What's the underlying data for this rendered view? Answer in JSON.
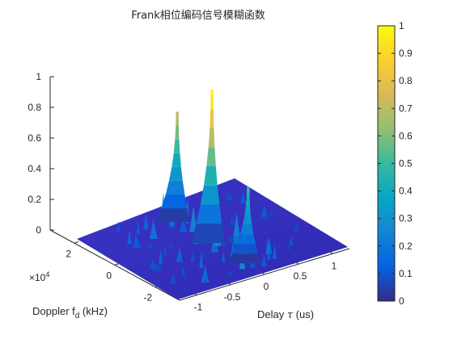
{
  "chart_data": {
    "type": "surface3d",
    "title": "Frank相位编码信号模糊函数",
    "xlabel": "Delay τ (us)",
    "xlabel_parts": {
      "text": "Delay ",
      "symbol": "τ",
      "unit": " (us)"
    },
    "ylabel": "Doppler f_d (kHz)",
    "ylabel_parts": {
      "text": "Doppler f",
      "subscript": "d",
      "unit": " (kHz)"
    },
    "y_multiplier": {
      "base": "×10",
      "exponent": "4"
    },
    "xlim": [
      -1.25,
      1.25
    ],
    "ylim": [
      -3.2,
      3.2
    ],
    "zlim": [
      0,
      1
    ],
    "x_ticks": [
      -1,
      -0.5,
      0,
      0.5,
      1
    ],
    "x_tick_labels": [
      "-1",
      "-0.5",
      "0",
      "0.5",
      "1"
    ],
    "y_ticks": [
      2,
      0,
      -2
    ],
    "y_tick_labels": [
      "2",
      "0",
      "-2"
    ],
    "z_ticks": [
      0,
      0.2,
      0.4,
      0.6,
      0.8,
      1
    ],
    "z_tick_labels": [
      "0",
      "0.2",
      "0.4",
      "0.6",
      "0.8",
      "1"
    ],
    "colormap": "parula",
    "colorbar": {
      "ticks": [
        0,
        0.1,
        0.2,
        0.3,
        0.4,
        0.5,
        0.6,
        0.7,
        0.8,
        0.9,
        1
      ],
      "tick_labels": [
        "0",
        "0.1",
        "0.2",
        "0.3",
        "0.4",
        "0.5",
        "0.6",
        "0.7",
        "0.8",
        "0.9",
        "1"
      ],
      "stops": [
        "#352a87",
        "#0363e1",
        "#1485d4",
        "#06a7c6",
        "#38b99e",
        "#92bf73",
        "#d9ba56",
        "#fcce2e",
        "#f9fb0e"
      ]
    },
    "peaks": [
      {
        "delay": 0,
        "doppler": 0,
        "value": 1.0
      },
      {
        "delay": 0,
        "doppler": 2.2,
        "value": 0.72
      },
      {
        "delay": 0.02,
        "doppler": -2.2,
        "value": 0.5
      }
    ]
  }
}
